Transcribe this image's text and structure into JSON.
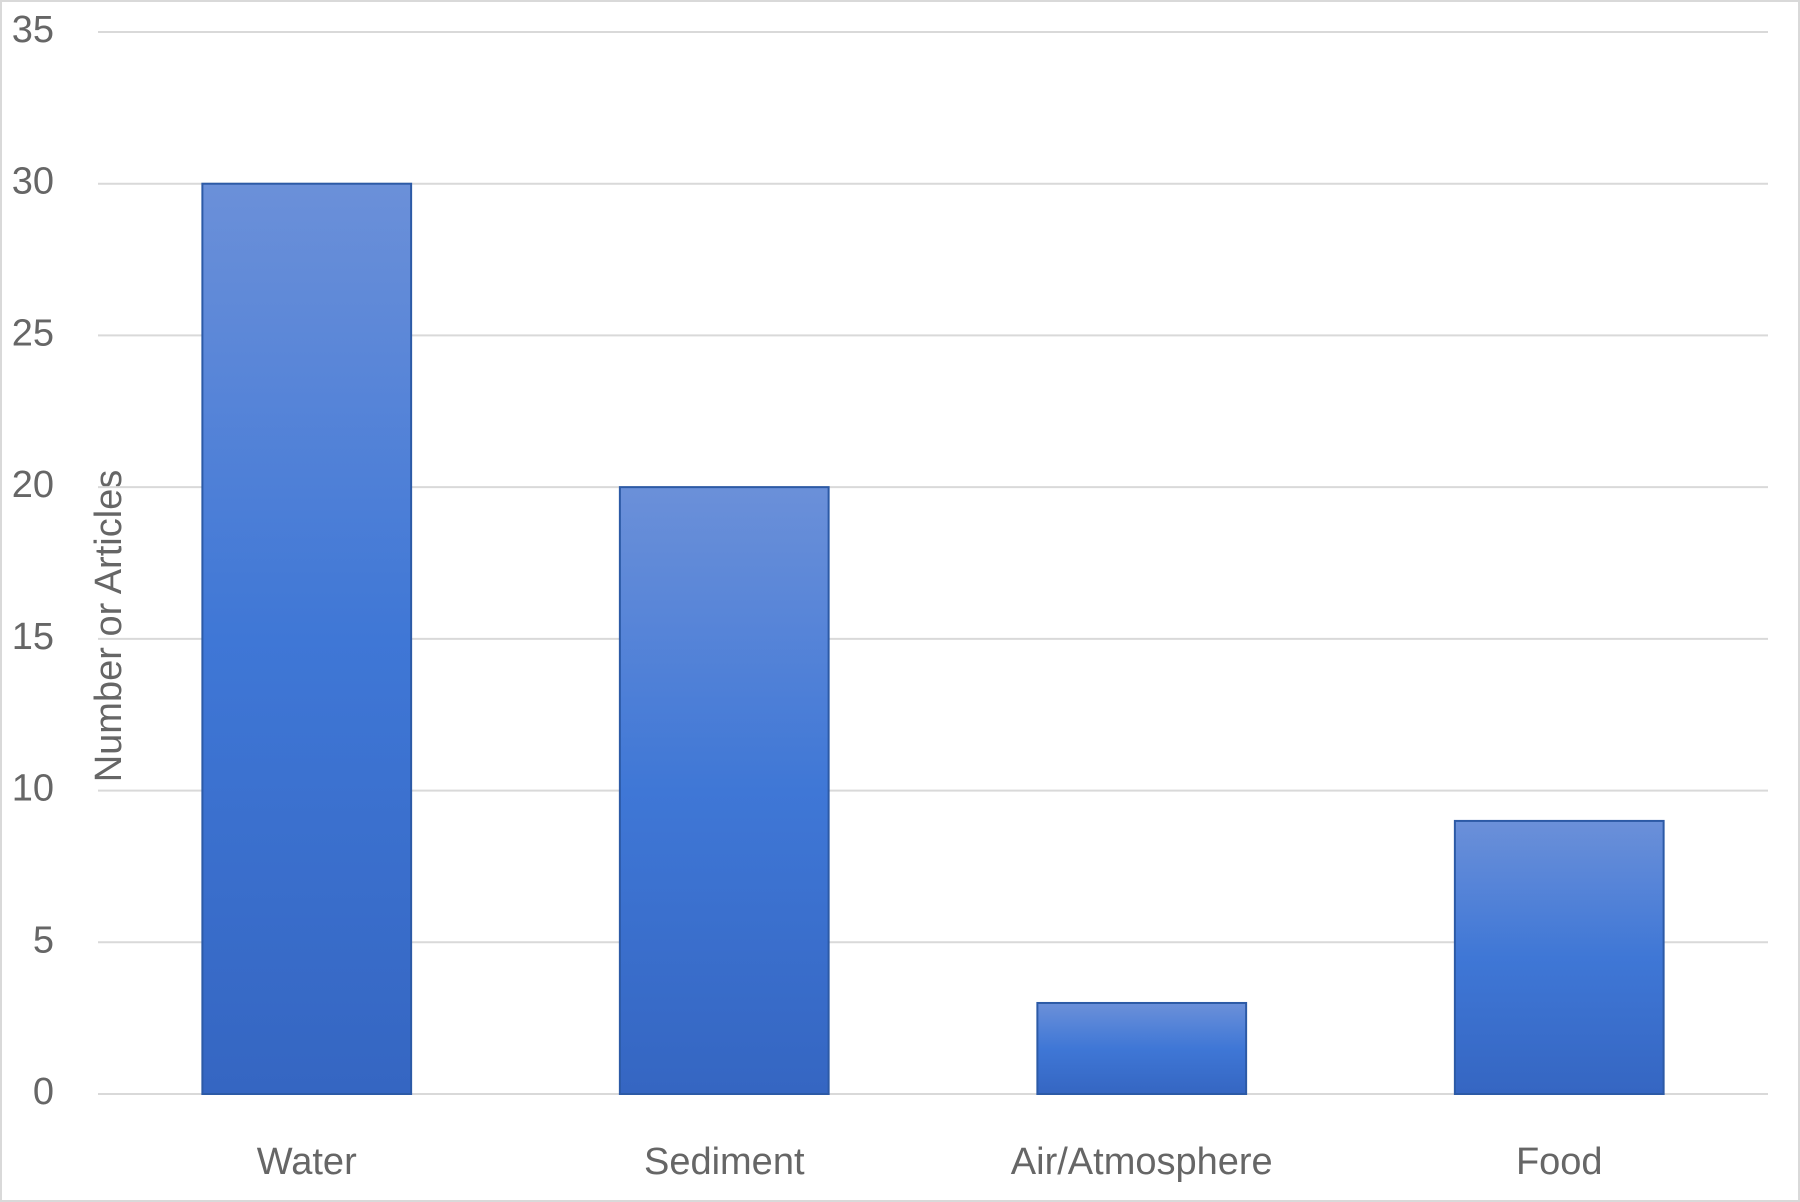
{
  "chart_data": {
    "type": "bar",
    "y_label": "Number or Articles",
    "categories": [
      "Water",
      "Sediment",
      "Air/Atmosphere",
      "Food"
    ],
    "values": [
      30,
      20,
      3,
      9
    ],
    "color": "#3f74d1",
    "ylim": [
      0,
      35
    ],
    "yticks": [
      0,
      5,
      10,
      15,
      20,
      25,
      30,
      35
    ],
    "grid": true
  }
}
